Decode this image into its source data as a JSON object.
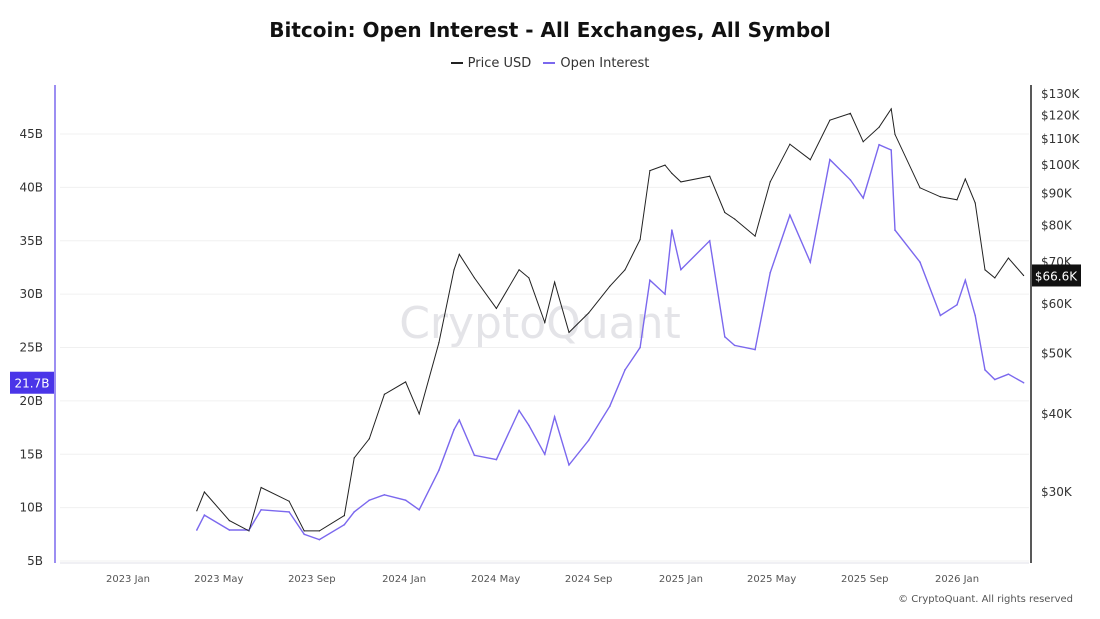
{
  "title": "Bitcoin: Open Interest - All Exchanges, All Symbol",
  "watermark": "CryptoQuant",
  "footer": "© CryptoQuant. All rights reserved",
  "colors": {
    "price": "#222222",
    "open_interest": "#7b68ee",
    "oi_badge": "#4a35e8",
    "price_badge": "#111111"
  },
  "chart_data": {
    "type": "line",
    "title": "Bitcoin: Open Interest - All Exchanges, All Symbol",
    "legend": [
      "Price USD",
      "Open Interest"
    ],
    "legend_position": "top",
    "grid": "horizontal",
    "x_ticks": [
      "2023 Jan",
      "2023 May",
      "2023 Sep",
      "2024 Jan",
      "2024 May",
      "2024 Sep",
      "2025 Jan",
      "2025 May",
      "2025 Sep",
      "2026 Jan"
    ],
    "x_tick_dates": [
      "2023-01-01",
      "2023-05-01",
      "2023-09-01",
      "2024-01-01",
      "2024-05-01",
      "2024-09-01",
      "2025-01-01",
      "2025-05-01",
      "2025-09-01",
      "2026-01-01"
    ],
    "left_axis": {
      "label": "",
      "ticks": [
        "5B",
        "10B",
        "15B",
        "20B",
        "25B",
        "30B",
        "35B",
        "40B",
        "45B"
      ],
      "tick_values": [
        5,
        10,
        15,
        20,
        25,
        30,
        35,
        40,
        45
      ],
      "range": [
        5,
        49
      ],
      "unit": "B",
      "current_label": "21.7B",
      "current_value": 21.7
    },
    "right_axis": {
      "label": "",
      "scale": "log",
      "ticks": [
        "$30K",
        "$40K",
        "$50K",
        "$60K",
        "$70K",
        "$80K",
        "$90K",
        "$100K",
        "$110K",
        "$120K",
        "$130K"
      ],
      "tick_values": [
        30,
        40,
        50,
        60,
        70,
        80,
        90,
        100,
        110,
        120,
        130
      ],
      "unit": "K USD",
      "current_label": "$66.6K",
      "current_value": 66.6
    },
    "x": [
      "2023-04-02",
      "2023-04-12",
      "2023-05-15",
      "2023-06-10",
      "2023-06-26",
      "2023-08-02",
      "2023-08-22",
      "2023-09-11",
      "2023-10-14",
      "2023-10-27",
      "2023-11-16",
      "2023-12-06",
      "2024-01-03",
      "2024-01-21",
      "2024-02-16",
      "2024-03-07",
      "2024-03-14",
      "2024-04-03",
      "2024-05-02",
      "2024-06-01",
      "2024-06-14",
      "2024-07-05",
      "2024-07-18",
      "2024-08-06",
      "2024-09-01",
      "2024-09-29",
      "2024-10-19",
      "2024-11-08",
      "2024-11-21",
      "2024-12-11",
      "2024-12-20",
      "2025-01-01",
      "2025-02-08",
      "2025-02-28",
      "2025-03-13",
      "2025-04-09",
      "2025-04-29",
      "2025-05-25",
      "2025-06-21",
      "2025-07-17",
      "2025-08-13",
      "2025-08-30",
      "2025-09-20",
      "2025-10-06",
      "2025-10-11",
      "2025-11-13",
      "2025-12-10",
      "2026-01-01",
      "2026-01-12",
      "2026-01-25",
      "2026-02-07",
      "2026-02-20",
      "2026-03-10",
      "2026-03-30"
    ],
    "series": [
      {
        "name": "Price USD",
        "axis": "right",
        "values": [
          28,
          30,
          27,
          26,
          30.5,
          29,
          26,
          26,
          27.5,
          34,
          36.5,
          43,
          45,
          40,
          52,
          68,
          72,
          66,
          59,
          68,
          66,
          56,
          65,
          54,
          58,
          64,
          68,
          76,
          98,
          100,
          97,
          94,
          96,
          84,
          82,
          77,
          94,
          108,
          102,
          118,
          121,
          109,
          115,
          123,
          112,
          92,
          89,
          88,
          95,
          87,
          68,
          66,
          71,
          66.6
        ]
      },
      {
        "name": "Open Interest",
        "axis": "left",
        "values": [
          7.9,
          9.3,
          7.9,
          7.9,
          9.8,
          9.6,
          7.5,
          7.0,
          8.4,
          9.6,
          10.7,
          11.2,
          10.7,
          9.8,
          13.5,
          17.3,
          18.2,
          14.9,
          14.5,
          19.1,
          17.7,
          15.0,
          18.5,
          14.0,
          16.3,
          19.5,
          22.9,
          25,
          31.3,
          30,
          36,
          32.3,
          35,
          26,
          25.2,
          24.8,
          32,
          37.4,
          33,
          42.6,
          40.7,
          39,
          44,
          43.5,
          36,
          33,
          28,
          29,
          31.3,
          28,
          22.9,
          22,
          22.5,
          21.7
        ]
      }
    ]
  }
}
